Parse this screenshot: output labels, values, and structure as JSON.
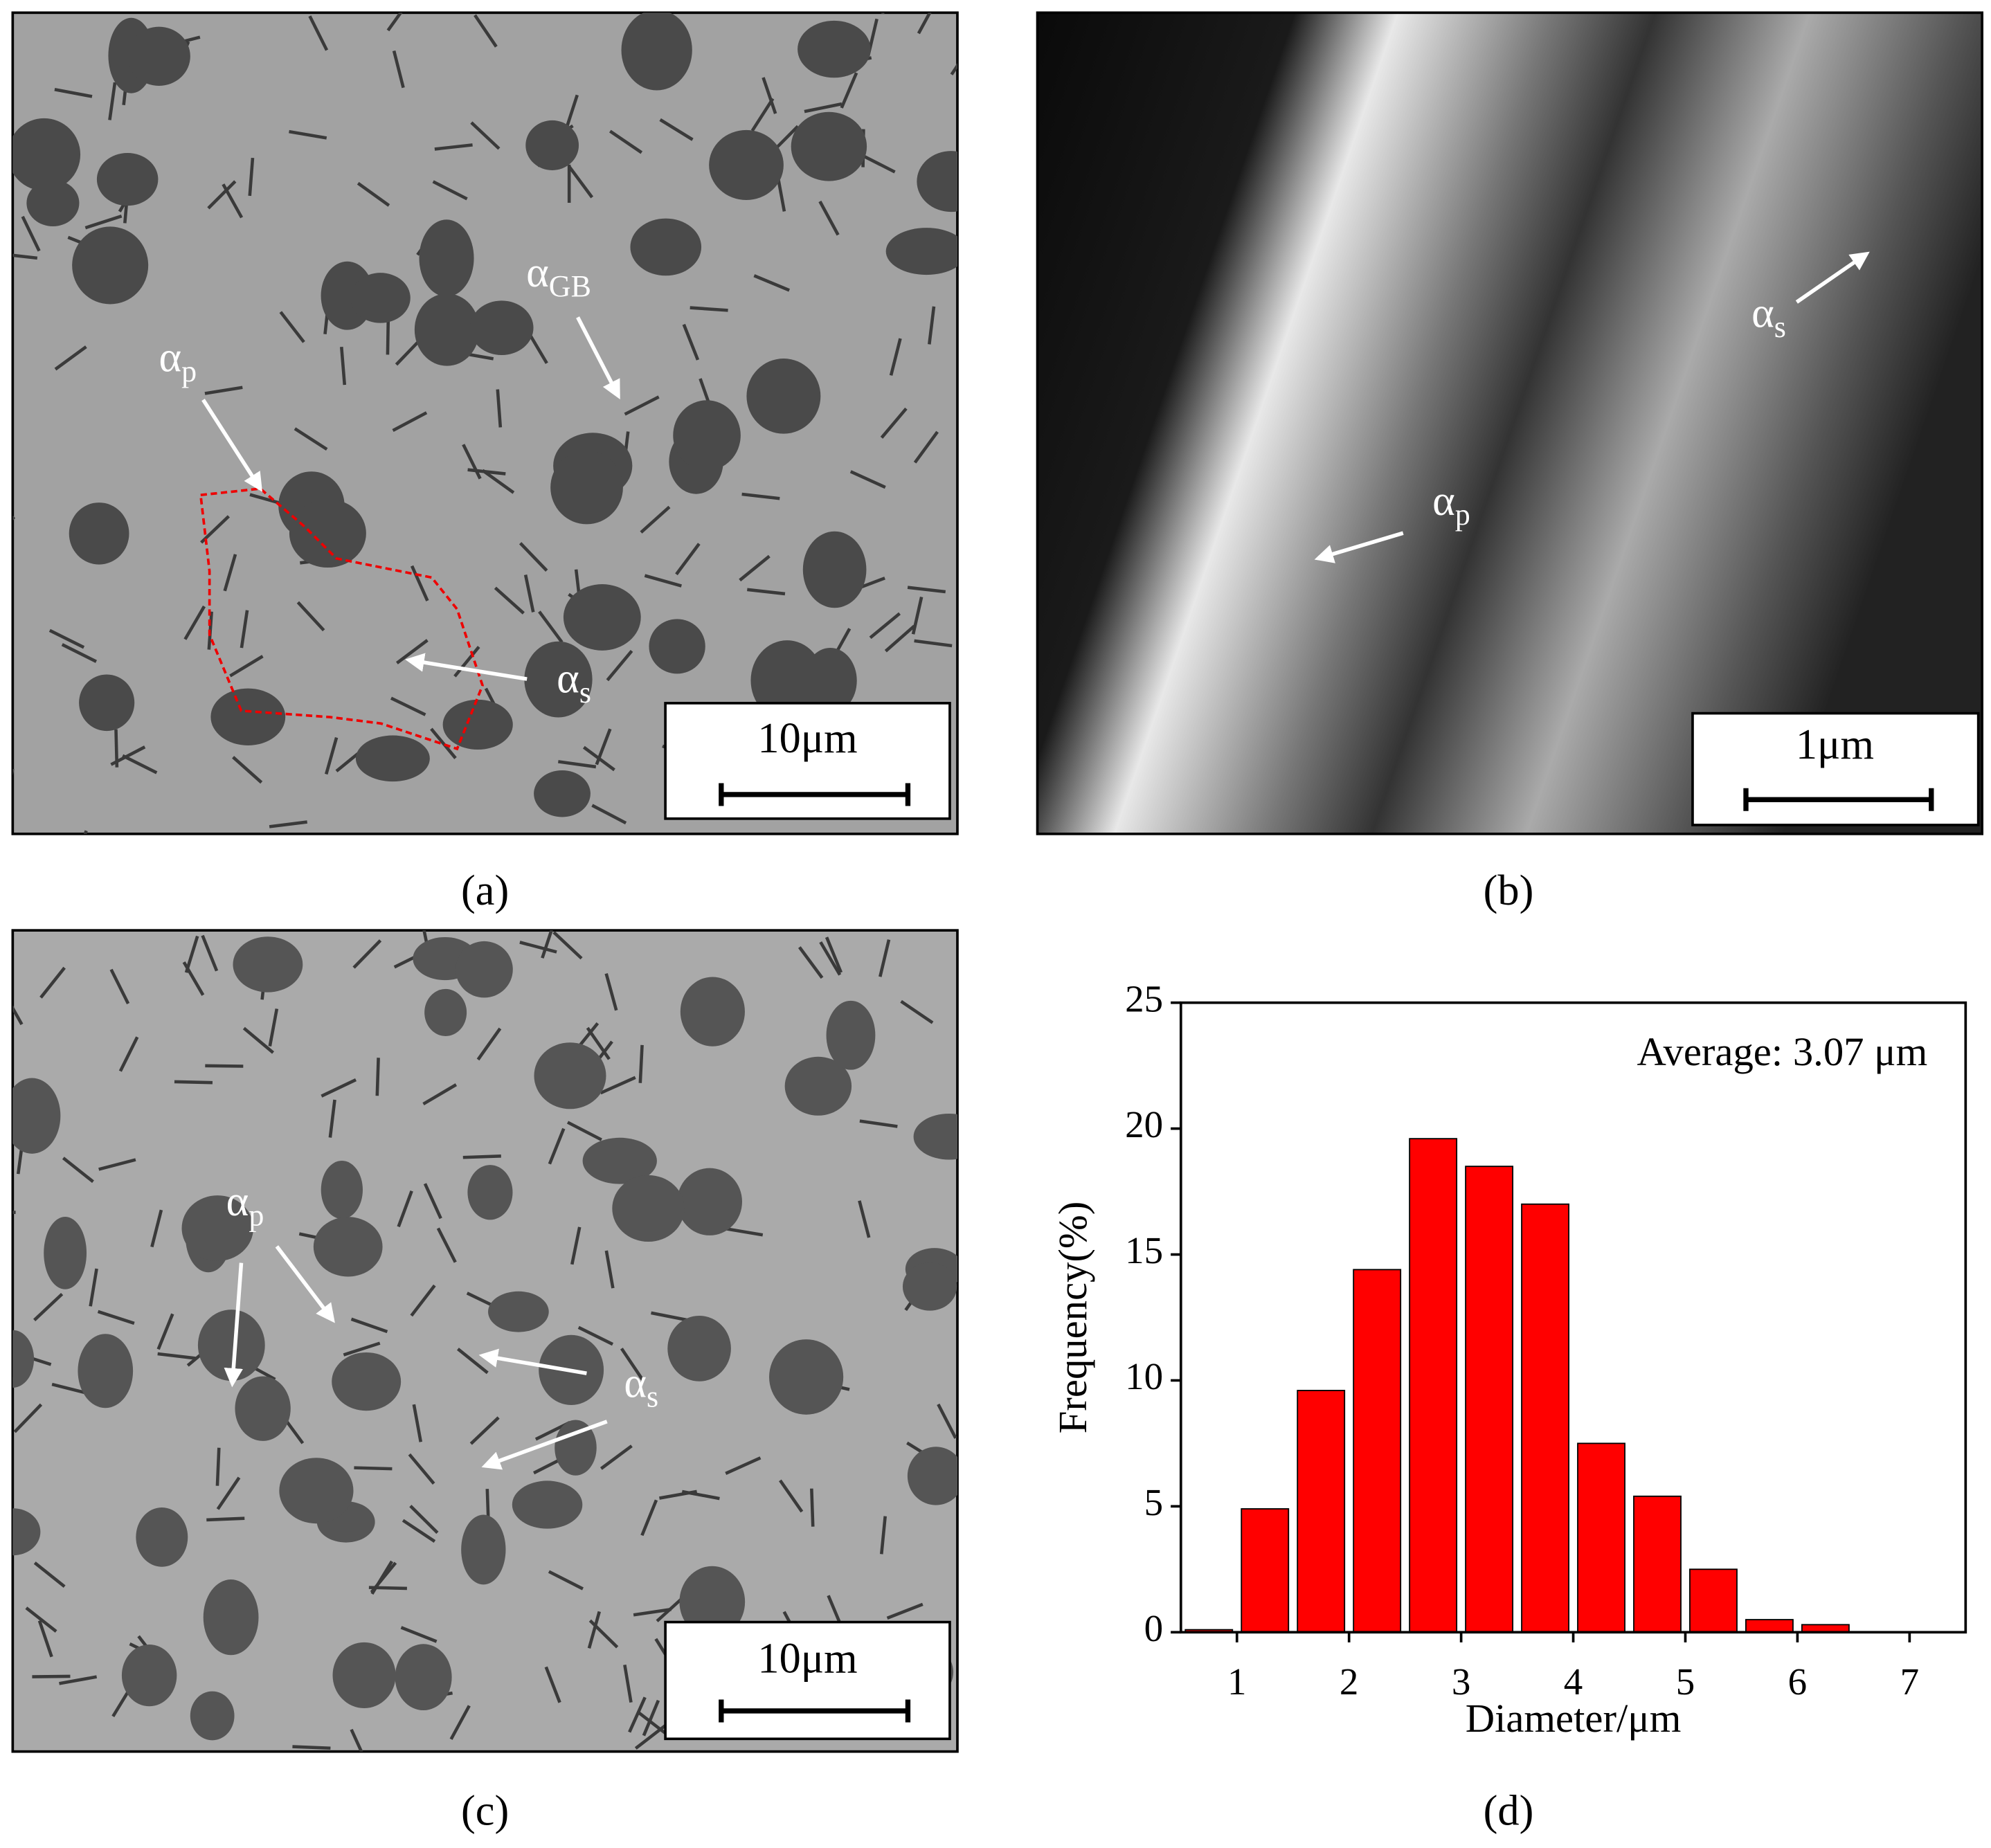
{
  "panels": [
    {
      "label": "(a)",
      "scale_bar": "10μm",
      "annotations": [
        {
          "base": "α",
          "sub": "GB"
        },
        {
          "base": "α",
          "sub": "p"
        },
        {
          "base": "α",
          "sub": "s"
        }
      ]
    },
    {
      "label": "(b)",
      "scale_bar": "1μm",
      "annotations": [
        {
          "base": "α",
          "sub": "s"
        },
        {
          "base": "α",
          "sub": "p"
        }
      ]
    },
    {
      "label": "(c)",
      "scale_bar": "10μm",
      "annotations": [
        {
          "base": "α",
          "sub": "p"
        },
        {
          "base": "α",
          "sub": "s"
        }
      ]
    },
    {
      "label": "(d)"
    }
  ],
  "chart_data": {
    "type": "histogram",
    "bins": [
      0.5,
      1,
      1.5,
      2,
      2.5,
      3,
      3.5,
      4,
      4.5,
      5,
      5.5,
      6,
      6.5
    ],
    "counts": [
      0.1,
      4.9,
      9.6,
      14.4,
      19.6,
      18.5,
      17.0,
      7.5,
      5.4,
      2.5,
      0.5,
      0.3
    ],
    "color": "#ff0000",
    "xlabel": "Diameter/μm",
    "ylabel": "Frequency(%)",
    "annotation": "Average: 3.07 μm",
    "xlim": [
      0.5,
      7.5
    ],
    "ylim": [
      0,
      25
    ],
    "xticks": [
      1,
      2,
      3,
      4,
      5,
      6,
      7
    ],
    "yticks": [
      0,
      5,
      10,
      15,
      20,
      25
    ]
  }
}
